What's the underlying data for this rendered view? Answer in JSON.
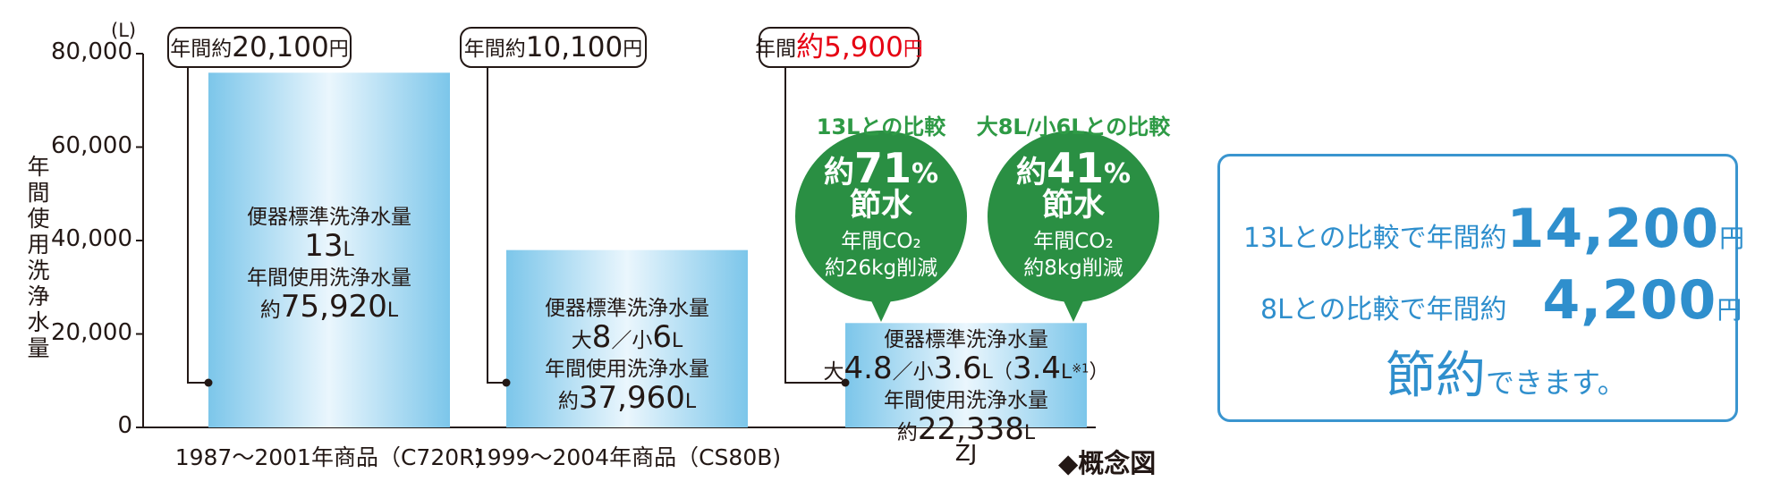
{
  "chart_data": {
    "type": "bar",
    "ylabel": "年間使用洗浄水量",
    "yunit": "(L)",
    "ylim": [
      0,
      80000
    ],
    "yticks": [
      "80,000",
      "60,000",
      "40,000",
      "20,000",
      "0"
    ],
    "ytick_values": [
      80000,
      60000,
      40000,
      20000,
      0
    ],
    "categories": [
      "1987〜2001年商品（C720R)",
      "1999〜2004年商品（CS80B)",
      "ZJ"
    ],
    "values": [
      75920,
      37960,
      22338
    ],
    "bars": [
      {
        "label_lines": [
          {
            "parts": [
              {
                "t": "便器標準洗浄水量",
                "c": "bl-s"
              }
            ]
          },
          {
            "parts": [
              {
                "t": "13",
                "c": "bl-b"
              },
              {
                "t": "L",
                "c": "bl-u"
              }
            ]
          },
          {
            "parts": [
              {
                "t": "年間使用洗浄水量",
                "c": "bl-s"
              }
            ]
          },
          {
            "parts": [
              {
                "t": "約",
                "c": "bl-s"
              },
              {
                "t": "75,920",
                "c": "bl-b"
              },
              {
                "t": "L",
                "c": "bl-u"
              }
            ]
          }
        ],
        "callout": {
          "prefix": "年間約",
          "amount": "20,100",
          "suffix": "円",
          "red": false
        }
      },
      {
        "label_lines": [
          {
            "parts": [
              {
                "t": "便器標準洗浄水量",
                "c": "bl-s"
              }
            ]
          },
          {
            "parts": [
              {
                "t": "大",
                "c": "bl-s"
              },
              {
                "t": "8",
                "c": "bl-b"
              },
              {
                "t": "／小",
                "c": "bl-s"
              },
              {
                "t": "6",
                "c": "bl-b"
              },
              {
                "t": "L",
                "c": "bl-u"
              }
            ]
          },
          {
            "parts": [
              {
                "t": "年間使用洗浄水量",
                "c": "bl-s"
              }
            ]
          },
          {
            "parts": [
              {
                "t": "約",
                "c": "bl-s"
              },
              {
                "t": "37,960",
                "c": "bl-b"
              },
              {
                "t": "L",
                "c": "bl-u"
              }
            ]
          }
        ],
        "callout": {
          "prefix": "年間約",
          "amount": "10,100",
          "suffix": "円",
          "red": false
        }
      },
      {
        "label_lines": [
          {
            "parts": [
              {
                "t": "便器標準洗浄水量",
                "c": "bl-s"
              }
            ]
          },
          {
            "parts": [
              {
                "t": "大",
                "c": "bl-s"
              },
              {
                "t": "4.8",
                "c": "bl-b"
              },
              {
                "t": "／小",
                "c": "bl-s"
              },
              {
                "t": "3.6",
                "c": "bl-b"
              },
              {
                "t": "L（",
                "c": "bl-u"
              },
              {
                "t": "3.4",
                "c": "bl-b"
              },
              {
                "t": "L",
                "c": "bl-u"
              },
              {
                "t": "※1",
                "c": "bl-u"
              },
              {
                "t": "）",
                "c": "bl-u"
              }
            ]
          },
          {
            "parts": [
              {
                "t": "年間使用洗浄水量",
                "c": "bl-s"
              }
            ]
          },
          {
            "parts": [
              {
                "t": "約",
                "c": "bl-s"
              },
              {
                "t": "22,338",
                "c": "bl-b"
              },
              {
                "t": "L",
                "c": "bl-u"
              }
            ]
          }
        ],
        "callout": {
          "prefix": "年間",
          "amount": "約5,900",
          "suffix": "円",
          "red": true
        }
      }
    ],
    "comparisons": [
      {
        "heading": "13Lとの比較",
        "pct_prefix": "約",
        "pct": "71",
        "pct_unit": "%",
        "saving": "節水",
        "co2_line": "年間CO₂",
        "co2_amount": "約26kg削減"
      },
      {
        "heading": "大8L/小6Lとの比較",
        "pct_prefix": "約",
        "pct": "41",
        "pct_unit": "%",
        "saving": "節水",
        "co2_line": "年間CO₂",
        "co2_amount": "約8kg削減"
      }
    ],
    "note": "◆概念図",
    "grid": false,
    "colors": {
      "bar_edge": "#7cc6ea",
      "bar_center": "#eaf6fd",
      "bubble": "#2a8f43",
      "green_text": "#2e9a45",
      "summary": "#2f8fcd",
      "red": "#e60012"
    }
  },
  "summary": {
    "line1_prefix": "13Lとの比較で年間約",
    "line1_amount": "14,200",
    "line1_suffix": "円",
    "line2_prefix": "8Lとの比較で年間約",
    "line2_amount": "4,200",
    "line2_suffix": "円",
    "line3_big": "節約",
    "line3_rest": "できます。"
  }
}
